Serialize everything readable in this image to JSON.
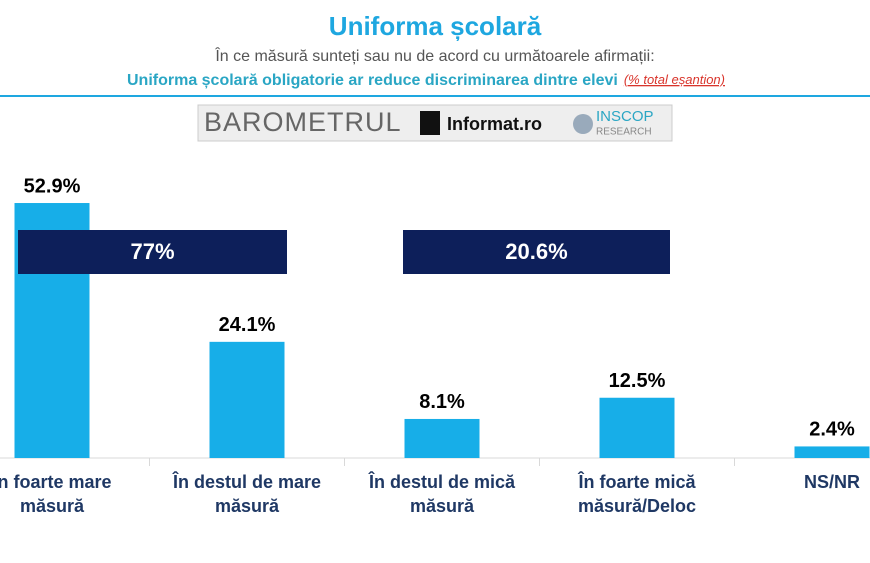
{
  "header": {
    "title": "Uniforma școlară",
    "subtitle": "În ce măsură sunteți sau nu de acord cu următoarele afirmații:",
    "question": "Uniforma școlară obligatorie ar reduce discriminarea dintre elevi",
    "note": "(% total eșantion)"
  },
  "logo": {
    "brand": "BAROMETRUL",
    "partner": "Informat.ro",
    "research": "INSCOP",
    "research_sub": "RESEARCH"
  },
  "chart_data": {
    "type": "bar",
    "categories": [
      "În foarte mare măsură",
      "În destul de mare măsură",
      "În destul de mică măsură",
      "În foarte mică măsură/Deloc",
      "NS/NR"
    ],
    "values": [
      52.9,
      24.1,
      8.1,
      12.5,
      2.4
    ],
    "value_labels": [
      "52.9%",
      "24.1%",
      "8.1%",
      "12.5%",
      "2.4%"
    ],
    "color": "#17aee8",
    "summary": {
      "values": [
        77,
        20.6
      ],
      "value_labels": [
        "77%",
        "20.6%"
      ],
      "color": "#0d1f5a"
    }
  }
}
